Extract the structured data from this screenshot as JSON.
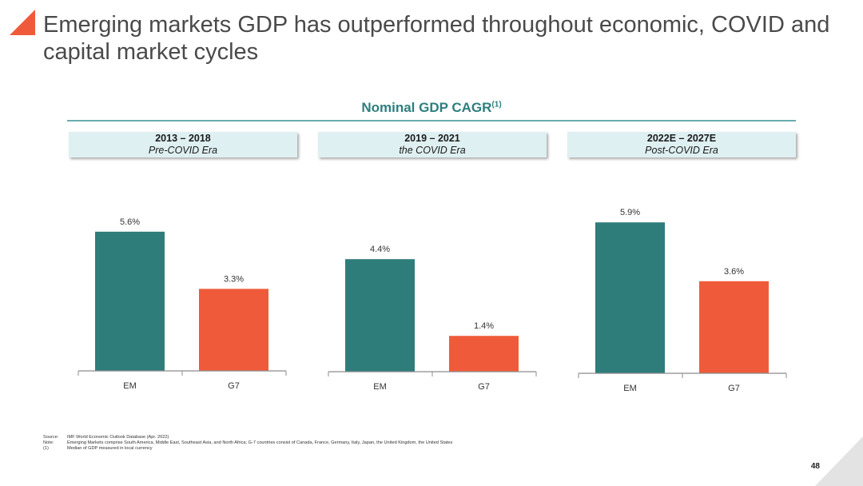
{
  "page": {
    "title": "Emerging markets GDP has outperformed throughout economic, COVID and capital market cycles",
    "page_number": "48",
    "logo_icon": "orange-triangle-icon"
  },
  "section": {
    "title": "Nominal GDP CAGR",
    "superscript": "(1)"
  },
  "colors": {
    "em": "#2e7d7b",
    "g7": "#ef5b3a",
    "accent": "#ef5b3a",
    "header_fill": "#dff0f2"
  },
  "chart_data": [
    {
      "type": "bar",
      "title": "2013 – 2018",
      "subtitle": "Pre-COVID Era",
      "categories": [
        "EM",
        "G7"
      ],
      "values": [
        5.6,
        3.3
      ],
      "data_labels": [
        "5.6%",
        "3.3%"
      ],
      "ylim": [
        0,
        6.5
      ]
    },
    {
      "type": "bar",
      "title": "2019 – 2021",
      "subtitle": "the COVID Era",
      "categories": [
        "EM",
        "G7"
      ],
      "values": [
        4.4,
        1.4
      ],
      "data_labels": [
        "4.4%",
        "1.4%"
      ],
      "ylim": [
        0,
        6.5
      ]
    },
    {
      "type": "bar",
      "title": "2022E – 2027E",
      "subtitle": "Post-COVID Era",
      "categories": [
        "EM",
        "G7"
      ],
      "values": [
        5.9,
        3.6
      ],
      "data_labels": [
        "5.9%",
        "3.6%"
      ],
      "ylim": [
        0,
        6.5
      ]
    }
  ],
  "footnotes": [
    {
      "key": "Source:",
      "text": "IMF World Economic Outlook Database (Apr. 2022)"
    },
    {
      "key": "Note:",
      "text": "Emerging Markets comprise South America, Middle East, Southeast Asia, and North Africa; G-7 countries consist of Canada, France, Germany, Italy, Japan, the United Kingdom, the United States"
    },
    {
      "key": "(1)",
      "text": "Median of GDP measured in local currency"
    }
  ]
}
